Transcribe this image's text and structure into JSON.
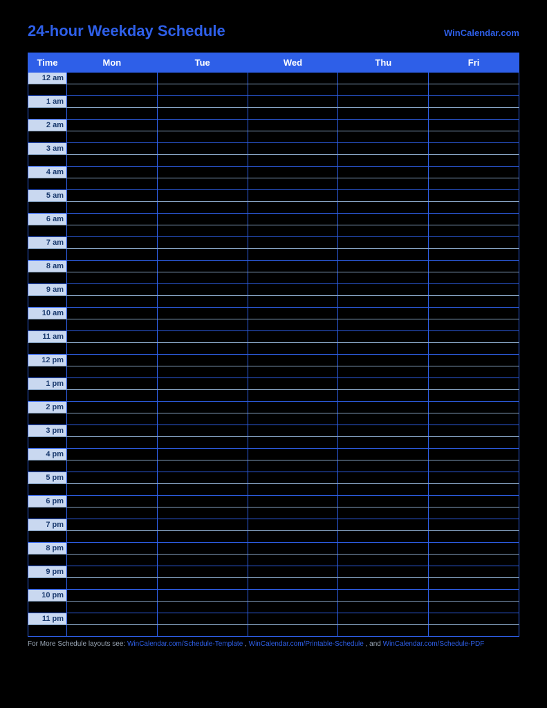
{
  "header": {
    "title": "24-hour Weekday Schedule",
    "title_color": "#2e5fe8",
    "site_link": "WinCalendar.com",
    "site_link_color": "#2e5fe8"
  },
  "table": {
    "header_bg": "#2e5fe8",
    "border_color": "#2e5fe8",
    "sub_border_color": "#88a5c5",
    "time_cell_bg": "#c9d8f0",
    "time_text_color": "#1a3a6e",
    "columns": [
      "Time",
      "Mon",
      "Tue",
      "Wed",
      "Thu",
      "Fri"
    ],
    "hours": [
      "12 am",
      "1 am",
      "2 am",
      "3 am",
      "4 am",
      "5 am",
      "6 am",
      "7 am",
      "8 am",
      "9 am",
      "10 am",
      "11 am",
      "12 pm",
      "1 pm",
      "2 pm",
      "3 pm",
      "4 pm",
      "5 pm",
      "6 pm",
      "7 pm",
      "8 pm",
      "9 pm",
      "10 pm",
      "11 pm"
    ]
  },
  "footer": {
    "prefix": "For More Schedule layouts see: ",
    "link1": "WinCalendar.com/Schedule-Template",
    "sep1": ", ",
    "link2": "WinCalendar.com/Printable-Schedule",
    "sep2": ", and ",
    "link3": "WinCalendar.com/Schedule-PDF",
    "text_color": "#9aa6b5",
    "link_color": "#2e5fe8"
  },
  "colors": {
    "page_bg": "#000000"
  }
}
